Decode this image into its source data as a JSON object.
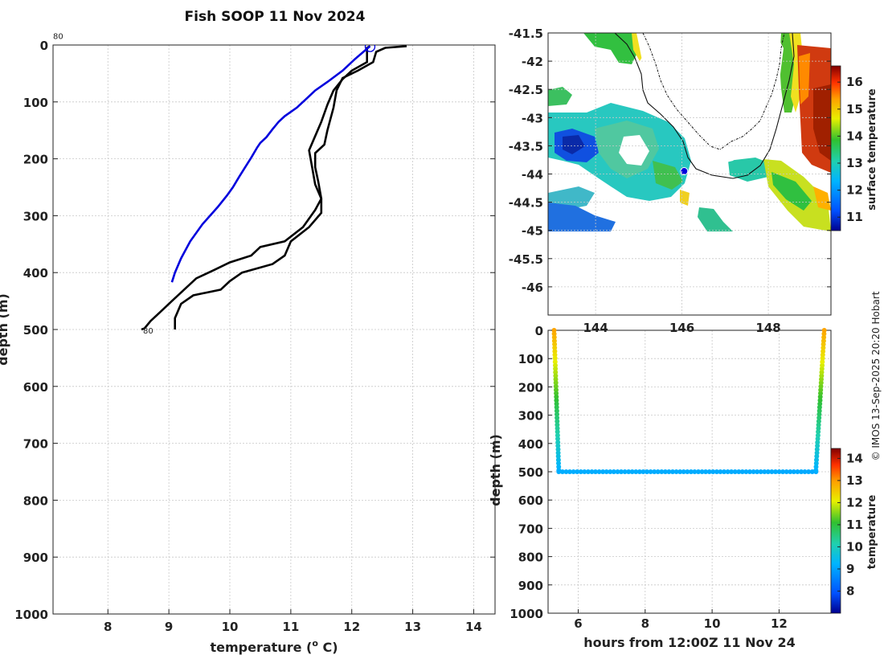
{
  "chart_data": [
    {
      "id": "profile",
      "type": "line",
      "title": "Fish SOOP 11 Nov 2024",
      "xlabel": "temperature (",
      "xlabel_sup": "o",
      "xlabel_tail": " C)",
      "ylabel": "depth (m)",
      "xlim": [
        7.1,
        14.35
      ],
      "ylim": [
        0,
        1000
      ],
      "xticks": [
        8,
        9,
        10,
        11,
        12,
        13,
        14
      ],
      "yticks": [
        0,
        100,
        200,
        300,
        400,
        500,
        600,
        700,
        800,
        900,
        1000
      ],
      "annotations": [
        {
          "text": "80",
          "x": 7.1,
          "y": -22
        },
        {
          "text": "80",
          "x": 8.55,
          "y": 500
        }
      ],
      "series": [
        {
          "name": "profile-down",
          "color": "#000000",
          "points": [
            [
              12.9,
              2
            ],
            [
              12.55,
              5
            ],
            [
              12.4,
              12
            ],
            [
              12.35,
              30
            ],
            [
              12.1,
              45
            ],
            [
              11.85,
              58
            ],
            [
              11.75,
              80
            ],
            [
              11.7,
              110
            ],
            [
              11.6,
              150
            ],
            [
              11.55,
              175
            ],
            [
              11.4,
              190
            ],
            [
              11.4,
              215
            ],
            [
              11.45,
              240
            ],
            [
              11.5,
              270
            ],
            [
              11.4,
              290
            ],
            [
              11.2,
              320
            ],
            [
              10.9,
              345
            ],
            [
              10.5,
              355
            ],
            [
              10.35,
              370
            ],
            [
              10.0,
              382
            ],
            [
              9.75,
              395
            ],
            [
              9.45,
              410
            ],
            [
              9.25,
              430
            ],
            [
              9.05,
              450
            ],
            [
              8.85,
              470
            ],
            [
              8.7,
              485
            ],
            [
              8.6,
              498
            ],
            [
              8.55,
              500
            ]
          ]
        },
        {
          "name": "profile-up",
          "color": "#000000",
          "points": [
            [
              9.1,
              500
            ],
            [
              9.1,
              480
            ],
            [
              9.2,
              455
            ],
            [
              9.4,
              440
            ],
            [
              9.85,
              430
            ],
            [
              10.0,
              415
            ],
            [
              10.2,
              400
            ],
            [
              10.7,
              385
            ],
            [
              10.9,
              370
            ],
            [
              11.0,
              345
            ],
            [
              11.3,
              320
            ],
            [
              11.5,
              295
            ],
            [
              11.5,
              270
            ],
            [
              11.4,
              245
            ],
            [
              11.35,
              215
            ],
            [
              11.3,
              185
            ],
            [
              11.4,
              160
            ],
            [
              11.5,
              135
            ],
            [
              11.6,
              105
            ],
            [
              11.7,
              80
            ],
            [
              11.85,
              60
            ],
            [
              12.0,
              45
            ],
            [
              12.25,
              30
            ],
            [
              12.25,
              5
            ],
            [
              12.3,
              2
            ]
          ]
        },
        {
          "name": "profile-surface-track",
          "color": "#0000dd",
          "points": [
            [
              12.3,
              2
            ],
            [
              12.05,
              25
            ],
            [
              11.85,
              45
            ],
            [
              11.6,
              65
            ],
            [
              11.4,
              80
            ],
            [
              11.25,
              95
            ],
            [
              11.1,
              110
            ],
            [
              10.9,
              125
            ],
            [
              10.8,
              135
            ],
            [
              10.7,
              148
            ],
            [
              10.6,
              162
            ],
            [
              10.5,
              172
            ],
            [
              10.45,
              180
            ],
            [
              10.35,
              198
            ],
            [
              10.25,
              215
            ],
            [
              10.15,
              232
            ],
            [
              10.05,
              250
            ],
            [
              9.95,
              265
            ],
            [
              9.8,
              285
            ],
            [
              9.55,
              315
            ],
            [
              9.35,
              345
            ],
            [
              9.2,
              375
            ],
            [
              9.1,
              400
            ],
            [
              9.05,
              417
            ]
          ]
        }
      ],
      "marker": {
        "x": 12.3,
        "y": 3
      }
    },
    {
      "id": "sst-map",
      "type": "heatmap",
      "xlim": [
        142.9,
        149.45
      ],
      "ylim": [
        -46.5,
        -41.5
      ],
      "yticks": [
        -41.5,
        -42,
        -42.5,
        -43,
        -43.5,
        -44,
        -44.5,
        -45,
        -45.5,
        -46
      ],
      "xticks": [
        144,
        146,
        148
      ],
      "colorbar": {
        "label": "surface temperature",
        "min": 10.5,
        "max": 16.6,
        "ticks": [
          11,
          12,
          13,
          14,
          15,
          16
        ]
      },
      "position_marker": {
        "lon": 146.05,
        "lat": -43.95
      }
    },
    {
      "id": "depth-time",
      "type": "scatter",
      "xlabel": "hours from 12:00Z 11 Nov 24",
      "ylabel": "depth (m)",
      "xlim": [
        5.1,
        13.55
      ],
      "ylim": [
        0,
        1000
      ],
      "xticks": [
        6,
        8,
        10,
        12
      ],
      "yticks": [
        0,
        100,
        200,
        300,
        400,
        500,
        600,
        700,
        800,
        900,
        1000
      ],
      "colorbar": {
        "label": "temperature",
        "min": 7.0,
        "max": 14.45,
        "ticks": [
          8,
          9,
          10,
          11,
          12,
          13,
          14
        ]
      },
      "segments": [
        {
          "t0": 5.28,
          "t1": 5.42,
          "d0": 0,
          "d1": 495,
          "temp0": 12.9,
          "temp1": 9.2
        },
        {
          "t0": 5.42,
          "t1": 13.1,
          "d0": 500,
          "d1": 500,
          "temp0": 9.15,
          "temp1": 9.1
        },
        {
          "t0": 13.1,
          "t1": 13.35,
          "d0": 495,
          "d1": 0,
          "temp0": 9.2,
          "temp1": 12.9
        }
      ]
    }
  ],
  "credit": "© IMOS 13-Sep-2025 20:20 Hobart"
}
